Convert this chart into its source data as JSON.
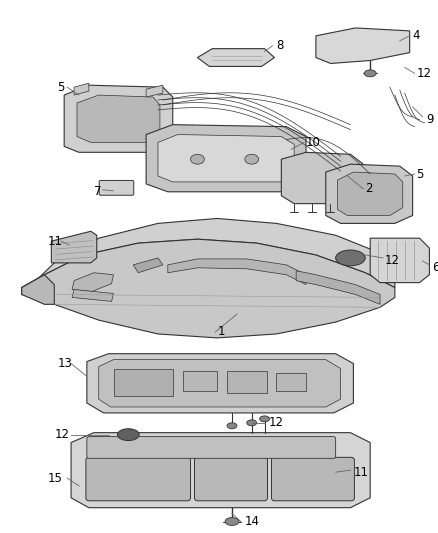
{
  "bg_color": "#ffffff",
  "fig_width": 4.39,
  "fig_height": 5.33,
  "dpi": 100,
  "line_color": "#333333",
  "label_color": "#000000",
  "callout_color": "#666666",
  "label_fontsize": 8.5,
  "part_face": "#e8e8e8",
  "part_face_dark": "#c8c8c8",
  "part_face_mid": "#d8d8d8",
  "screw_color": "#555555"
}
